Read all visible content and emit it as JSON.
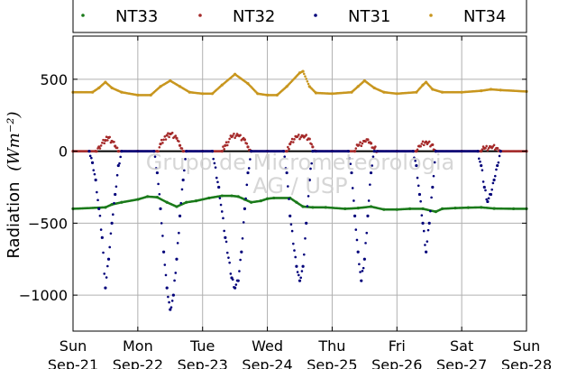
{
  "chart_data": {
    "type": "scatter",
    "title": "",
    "xlabel": "",
    "ylabel": "Radiation",
    "ylabel_unit": "(Wm⁻²)",
    "ylim": [
      -1250,
      800
    ],
    "xlim": [
      0,
      7
    ],
    "yticks": [
      500,
      0,
      -500,
      -1000
    ],
    "ytick_labels": [
      "500",
      "0",
      "−500",
      "−1000"
    ],
    "xticks": [
      {
        "value": 0,
        "day": "Sun",
        "date": "Sep-21"
      },
      {
        "value": 1,
        "day": "Mon",
        "date": "Sep-22"
      },
      {
        "value": 2,
        "day": "Tue",
        "date": "Sep-23"
      },
      {
        "value": 3,
        "day": "Wed",
        "date": "Sep-24"
      },
      {
        "value": 4,
        "day": "Thu",
        "date": "Sep-25"
      },
      {
        "value": 5,
        "day": "Fri",
        "date": "Sep-26"
      },
      {
        "value": 6,
        "day": "Sat",
        "date": "Sep-27"
      },
      {
        "value": 7,
        "day": "Sun",
        "date": "Sep-28"
      }
    ],
    "grid": true,
    "legend_position": "top",
    "watermark": [
      "Grupo de Micrometeorologia",
      "AG / USP"
    ],
    "series": [
      {
        "name": "NT33",
        "color": "#1a7a1a",
        "points": [
          [
            0.0,
            -400
          ],
          [
            0.5,
            -390
          ],
          [
            0.6,
            -370
          ],
          [
            0.75,
            -355
          ],
          [
            1.0,
            -335
          ],
          [
            1.15,
            -315
          ],
          [
            1.3,
            -320
          ],
          [
            1.45,
            -355
          ],
          [
            1.6,
            -385
          ],
          [
            1.75,
            -355
          ],
          [
            1.9,
            -345
          ],
          [
            2.1,
            -325
          ],
          [
            2.3,
            -310
          ],
          [
            2.45,
            -310
          ],
          [
            2.55,
            -315
          ],
          [
            2.65,
            -335
          ],
          [
            2.75,
            -355
          ],
          [
            2.9,
            -345
          ],
          [
            3.0,
            -330
          ],
          [
            3.1,
            -325
          ],
          [
            3.35,
            -325
          ],
          [
            3.45,
            -355
          ],
          [
            3.55,
            -385
          ],
          [
            3.7,
            -390
          ],
          [
            3.9,
            -390
          ],
          [
            4.2,
            -400
          ],
          [
            4.4,
            -395
          ],
          [
            4.6,
            -385
          ],
          [
            4.8,
            -405
          ],
          [
            5.0,
            -405
          ],
          [
            5.2,
            -400
          ],
          [
            5.4,
            -400
          ],
          [
            5.6,
            -420
          ],
          [
            5.7,
            -400
          ],
          [
            5.9,
            -395
          ],
          [
            6.1,
            -392
          ],
          [
            6.3,
            -390
          ],
          [
            6.5,
            -398
          ],
          [
            6.8,
            -400
          ],
          [
            7.0,
            -400
          ]
        ]
      },
      {
        "name": "NT32",
        "color": "#a52a2a",
        "points": [
          [
            0.0,
            0
          ],
          [
            0.35,
            0
          ],
          [
            0.4,
            30
          ],
          [
            0.5,
            75
          ],
          [
            0.55,
            95
          ],
          [
            0.6,
            70
          ],
          [
            0.65,
            35
          ],
          [
            0.7,
            0
          ],
          [
            1.0,
            0
          ],
          [
            1.3,
            0
          ],
          [
            1.35,
            50
          ],
          [
            1.45,
            110
          ],
          [
            1.5,
            120
          ],
          [
            1.6,
            90
          ],
          [
            1.65,
            40
          ],
          [
            1.7,
            0
          ],
          [
            2.0,
            0
          ],
          [
            2.3,
            0
          ],
          [
            2.35,
            40
          ],
          [
            2.45,
            100
          ],
          [
            2.55,
            110
          ],
          [
            2.65,
            80
          ],
          [
            2.7,
            30
          ],
          [
            2.75,
            0
          ],
          [
            3.0,
            0
          ],
          [
            3.3,
            0
          ],
          [
            3.35,
            50
          ],
          [
            3.45,
            100
          ],
          [
            3.55,
            105
          ],
          [
            3.65,
            85
          ],
          [
            3.7,
            30
          ],
          [
            3.75,
            0
          ],
          [
            4.0,
            0
          ],
          [
            4.35,
            0
          ],
          [
            4.4,
            40
          ],
          [
            4.5,
            70
          ],
          [
            4.55,
            80
          ],
          [
            4.6,
            55
          ],
          [
            4.65,
            20
          ],
          [
            4.7,
            0
          ],
          [
            5.0,
            0
          ],
          [
            5.3,
            0
          ],
          [
            5.35,
            35
          ],
          [
            5.45,
            65
          ],
          [
            5.55,
            45
          ],
          [
            5.6,
            0
          ],
          [
            6.0,
            0
          ],
          [
            6.3,
            0
          ],
          [
            6.35,
            20
          ],
          [
            6.45,
            30
          ],
          [
            6.55,
            20
          ],
          [
            6.6,
            0
          ],
          [
            7.0,
            0
          ]
        ]
      },
      {
        "name": "NT31",
        "color": "#00007a",
        "points": [
          [
            0.25,
            0
          ],
          [
            0.3,
            -80
          ],
          [
            0.35,
            -200
          ],
          [
            0.4,
            -400
          ],
          [
            0.45,
            -600
          ],
          [
            0.5,
            -950
          ],
          [
            0.55,
            -750
          ],
          [
            0.6,
            -500
          ],
          [
            0.65,
            -300
          ],
          [
            0.7,
            -100
          ],
          [
            0.75,
            0
          ],
          [
            1.25,
            0
          ],
          [
            1.3,
            -150
          ],
          [
            1.35,
            -400
          ],
          [
            1.4,
            -700
          ],
          [
            1.45,
            -950
          ],
          [
            1.5,
            -1100
          ],
          [
            1.55,
            -1000
          ],
          [
            1.6,
            -750
          ],
          [
            1.65,
            -450
          ],
          [
            1.7,
            -200
          ],
          [
            1.75,
            0
          ],
          [
            2.15,
            0
          ],
          [
            2.25,
            -250
          ],
          [
            2.35,
            -600
          ],
          [
            2.45,
            -880
          ],
          [
            2.5,
            -950
          ],
          [
            2.55,
            -900
          ],
          [
            2.6,
            -700
          ],
          [
            2.65,
            -400
          ],
          [
            2.7,
            -150
          ],
          [
            2.75,
            0
          ],
          [
            3.25,
            0
          ],
          [
            3.3,
            -150
          ],
          [
            3.35,
            -450
          ],
          [
            3.45,
            -800
          ],
          [
            3.5,
            -900
          ],
          [
            3.55,
            -800
          ],
          [
            3.6,
            -500
          ],
          [
            3.65,
            -200
          ],
          [
            3.7,
            0
          ],
          [
            4.25,
            0
          ],
          [
            4.3,
            -150
          ],
          [
            4.35,
            -450
          ],
          [
            4.4,
            -700
          ],
          [
            4.45,
            -900
          ],
          [
            4.5,
            -750
          ],
          [
            4.55,
            -450
          ],
          [
            4.6,
            -150
          ],
          [
            4.65,
            0
          ],
          [
            5.25,
            0
          ],
          [
            5.3,
            -100
          ],
          [
            5.35,
            -300
          ],
          [
            5.4,
            -500
          ],
          [
            5.45,
            -700
          ],
          [
            5.5,
            -500
          ],
          [
            5.55,
            -250
          ],
          [
            5.6,
            0
          ],
          [
            6.25,
            0
          ],
          [
            6.3,
            -100
          ],
          [
            6.35,
            -250
          ],
          [
            6.4,
            -350
          ],
          [
            6.45,
            -300
          ],
          [
            6.5,
            -200
          ],
          [
            6.55,
            -100
          ],
          [
            6.6,
            0
          ]
        ]
      },
      {
        "name": "NT34",
        "color": "#c8961e",
        "points": [
          [
            0.0,
            410
          ],
          [
            0.3,
            410
          ],
          [
            0.4,
            440
          ],
          [
            0.5,
            480
          ],
          [
            0.6,
            440
          ],
          [
            0.75,
            410
          ],
          [
            1.0,
            390
          ],
          [
            1.2,
            390
          ],
          [
            1.35,
            450
          ],
          [
            1.5,
            490
          ],
          [
            1.65,
            450
          ],
          [
            1.8,
            410
          ],
          [
            2.0,
            400
          ],
          [
            2.15,
            400
          ],
          [
            2.3,
            460
          ],
          [
            2.5,
            535
          ],
          [
            2.7,
            470
          ],
          [
            2.85,
            400
          ],
          [
            3.0,
            390
          ],
          [
            3.15,
            390
          ],
          [
            3.3,
            450
          ],
          [
            3.5,
            545
          ],
          [
            3.55,
            555
          ],
          [
            3.65,
            450
          ],
          [
            3.75,
            405
          ],
          [
            4.0,
            400
          ],
          [
            4.3,
            410
          ],
          [
            4.4,
            450
          ],
          [
            4.5,
            490
          ],
          [
            4.65,
            440
          ],
          [
            4.8,
            410
          ],
          [
            5.0,
            400
          ],
          [
            5.3,
            410
          ],
          [
            5.4,
            460
          ],
          [
            5.45,
            480
          ],
          [
            5.55,
            430
          ],
          [
            5.7,
            410
          ],
          [
            6.0,
            410
          ],
          [
            6.3,
            420
          ],
          [
            6.45,
            430
          ],
          [
            6.6,
            425
          ],
          [
            7.0,
            415
          ]
        ]
      }
    ]
  }
}
